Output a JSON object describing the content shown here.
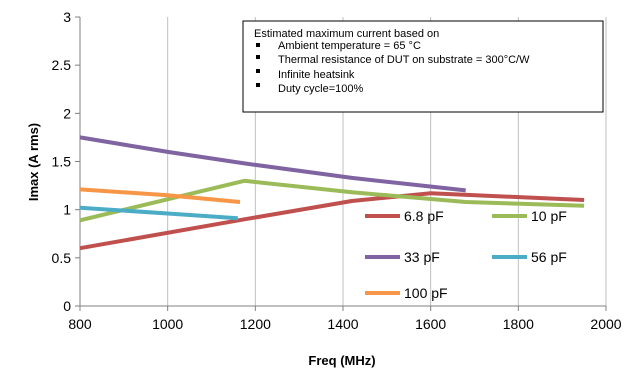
{
  "chart_data": {
    "type": "line",
    "title": "",
    "xlabel": "Freq (MHz)",
    "ylabel": "Imax (A rms)",
    "xlim": [
      800,
      2000
    ],
    "ylim": [
      0,
      3
    ],
    "x_ticks": [
      800,
      1000,
      1200,
      1400,
      1600,
      1800,
      2000
    ],
    "y_ticks": [
      0,
      0.5,
      1,
      1.5,
      2,
      2.5,
      3
    ],
    "x_tick_labels": [
      "800",
      "1000",
      "1200",
      "1400",
      "1600",
      "1800",
      "2000"
    ],
    "y_tick_labels": [
      "0",
      "0.5",
      "1",
      "1.5",
      "2",
      "2.5",
      "3"
    ],
    "grid": "vertical",
    "legend_position": "bottom-right",
    "series": [
      {
        "name": "6.8 pF",
        "color": "#c0504d",
        "x": [
          800,
          1175,
          1420,
          1600,
          1950
        ],
        "y": [
          0.6,
          0.9,
          1.09,
          1.17,
          1.1
        ]
      },
      {
        "name": "10 pF",
        "color": "#9bbb59",
        "x": [
          800,
          1175,
          1420,
          1680,
          1950
        ],
        "y": [
          0.89,
          1.3,
          1.18,
          1.08,
          1.04
        ]
      },
      {
        "name": "33 pF",
        "color": "#8064a2",
        "x": [
          800,
          1000,
          1175,
          1420,
          1680
        ],
        "y": [
          1.75,
          1.6,
          1.48,
          1.33,
          1.2
        ]
      },
      {
        "name": "56 pF",
        "color": "#4bacc6",
        "x": [
          800,
          1000,
          1160
        ],
        "y": [
          1.02,
          0.96,
          0.91
        ]
      },
      {
        "name": "100 pF",
        "color": "#f79646",
        "x": [
          800,
          1000,
          1165
        ],
        "y": [
          1.21,
          1.15,
          1.08
        ]
      }
    ],
    "annotation": {
      "title": "Estimated maximum current based on",
      "items": [
        "Ambient temperature = 65 °C",
        "Thermal resistance of  DUT on substrate  = 300°C/W",
        "Infinite heatsink",
        "Duty cycle=100%"
      ]
    }
  }
}
